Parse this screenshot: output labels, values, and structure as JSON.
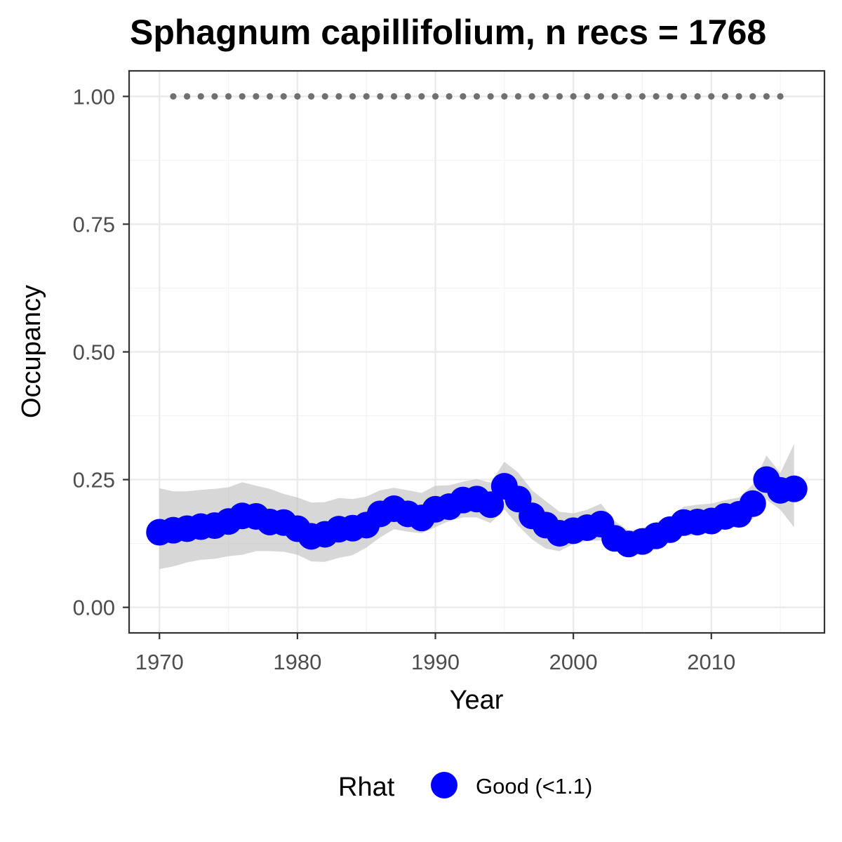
{
  "chart_data": {
    "type": "line",
    "title": "Sphagnum capillifolium, n recs = 1768",
    "xlabel": "Year",
    "ylabel": "Occupancy",
    "xlim": [
      1967.8,
      2018.2
    ],
    "ylim": [
      -0.05,
      1.05
    ],
    "x_ticks": [
      1970,
      1980,
      1990,
      2000,
      2010
    ],
    "x_tick_labels": [
      "1970",
      "1980",
      "1990",
      "2000",
      "2010"
    ],
    "y_ticks": [
      0,
      0.25,
      0.5,
      0.75,
      1.0
    ],
    "y_tick_labels": [
      "0.00",
      "0.25",
      "0.50",
      "0.75",
      "1.00"
    ],
    "grid": true,
    "legend": {
      "position": "bottom",
      "title": "Rhat",
      "entries": [
        {
          "label": "Good (<1.1)",
          "color": "#0000ff"
        }
      ]
    },
    "colors": {
      "points": "#0000ff",
      "ribbon": "#bfbfbf",
      "data_dots": "#707070"
    },
    "series": [
      {
        "type": "line-points",
        "years": [
          1970,
          1971,
          1972,
          1973,
          1974,
          1975,
          1976,
          1977,
          1978,
          1979,
          1980,
          1981,
          1982,
          1983,
          1984,
          1985,
          1986,
          1987,
          1988,
          1989,
          1990,
          1991,
          1992,
          1993,
          1994,
          1995,
          1996,
          1997,
          1998,
          1999,
          2000,
          2001,
          2002,
          2003,
          2004,
          2005,
          2006,
          2007,
          2008,
          2009,
          2010,
          2011,
          2012,
          2013,
          2014,
          2015,
          2016
        ],
        "values": [
          0.147,
          0.151,
          0.154,
          0.158,
          0.16,
          0.168,
          0.179,
          0.178,
          0.167,
          0.166,
          0.154,
          0.139,
          0.143,
          0.153,
          0.155,
          0.161,
          0.183,
          0.193,
          0.183,
          0.175,
          0.192,
          0.197,
          0.21,
          0.212,
          0.201,
          0.237,
          0.212,
          0.179,
          0.161,
          0.145,
          0.15,
          0.156,
          0.163,
          0.135,
          0.124,
          0.129,
          0.14,
          0.152,
          0.166,
          0.167,
          0.169,
          0.178,
          0.182,
          0.203,
          0.25,
          0.229,
          0.232
        ],
        "lower": [
          0.075,
          0.08,
          0.088,
          0.093,
          0.095,
          0.1,
          0.103,
          0.11,
          0.11,
          0.109,
          0.103,
          0.09,
          0.089,
          0.097,
          0.102,
          0.117,
          0.137,
          0.153,
          0.148,
          0.145,
          0.157,
          0.169,
          0.176,
          0.176,
          0.165,
          0.192,
          0.16,
          0.133,
          0.115,
          0.11,
          0.124,
          0.13,
          0.131,
          0.114,
          0.109,
          0.112,
          0.116,
          0.128,
          0.14,
          0.141,
          0.148,
          0.155,
          0.158,
          0.173,
          0.211,
          0.191,
          0.157
        ],
        "upper": [
          0.233,
          0.227,
          0.227,
          0.23,
          0.232,
          0.235,
          0.245,
          0.238,
          0.232,
          0.222,
          0.215,
          0.205,
          0.206,
          0.214,
          0.212,
          0.217,
          0.229,
          0.234,
          0.229,
          0.224,
          0.238,
          0.239,
          0.246,
          0.251,
          0.244,
          0.285,
          0.264,
          0.229,
          0.208,
          0.187,
          0.184,
          0.191,
          0.203,
          0.169,
          0.15,
          0.155,
          0.167,
          0.178,
          0.197,
          0.201,
          0.203,
          0.21,
          0.215,
          0.24,
          0.297,
          0.263,
          0.32
        ]
      },
      {
        "type": "data-dots",
        "name": "",
        "years": [
          1971,
          1972,
          1973,
          1974,
          1975,
          1976,
          1977,
          1978,
          1979,
          1980,
          1981,
          1982,
          1983,
          1984,
          1985,
          1986,
          1987,
          1988,
          1989,
          1990,
          1991,
          1992,
          1993,
          1994,
          1995,
          1996,
          1997,
          1998,
          1999,
          2000,
          2001,
          2002,
          2003,
          2004,
          2005,
          2006,
          2007,
          2008,
          2009,
          2010,
          2011,
          2012,
          2013,
          2014,
          2015
        ],
        "value": 1.0
      }
    ]
  }
}
